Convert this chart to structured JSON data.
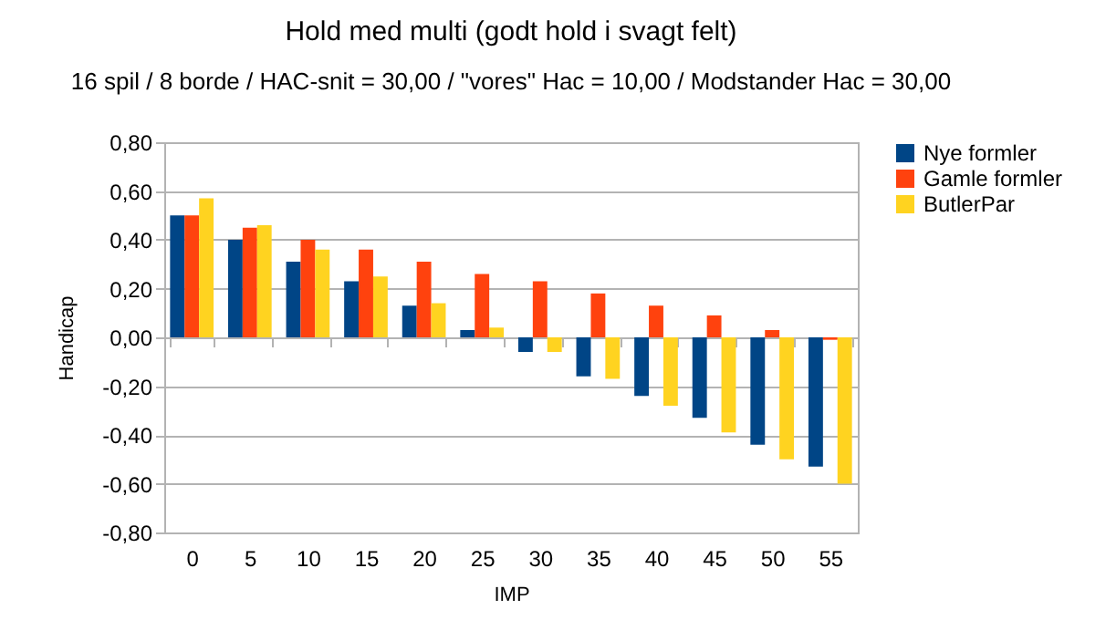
{
  "chart_data": {
    "type": "bar",
    "title": "Hold med multi (godt hold i svagt felt)",
    "subtitle": "16 spil / 8 borde / HAC-snit = 30,00 / \"vores\" Hac = 10,00 / Modstander Hac = 30,00",
    "xlabel": "IMP",
    "ylabel": "Handicap",
    "categories": [
      "0",
      "5",
      "10",
      "15",
      "20",
      "25",
      "30",
      "35",
      "40",
      "45",
      "50",
      "55"
    ],
    "series": [
      {
        "name": "Nye formler",
        "color": "#004586",
        "values": [
          0.5,
          0.4,
          0.31,
          0.23,
          0.13,
          0.03,
          -0.06,
          -0.16,
          -0.24,
          -0.33,
          -0.44,
          -0.53
        ]
      },
      {
        "name": "Gamle formler",
        "color": "#ff420e",
        "values": [
          0.5,
          0.45,
          0.4,
          0.36,
          0.31,
          0.26,
          0.23,
          0.18,
          0.13,
          0.09,
          0.03,
          -0.01
        ]
      },
      {
        "name": "ButlerPar",
        "color": "#ffd320",
        "values": [
          0.57,
          0.46,
          0.36,
          0.25,
          0.14,
          0.04,
          -0.06,
          -0.17,
          -0.28,
          -0.39,
          -0.5,
          -0.6
        ]
      }
    ],
    "ylim": [
      -0.8,
      0.8
    ],
    "yticks": [
      {
        "value": -0.8,
        "label": "-0,80"
      },
      {
        "value": -0.6,
        "label": "-0,60"
      },
      {
        "value": -0.4,
        "label": "-0,40"
      },
      {
        "value": -0.2,
        "label": "-0,20"
      },
      {
        "value": 0,
        "label": "0,00"
      },
      {
        "value": 0.2,
        "label": "0,20"
      },
      {
        "value": 0.4,
        "label": "0,40"
      },
      {
        "value": 0.6,
        "label": "0,60"
      },
      {
        "value": 0.8,
        "label": "0,80"
      }
    ],
    "grid": "y",
    "legend": "right"
  }
}
